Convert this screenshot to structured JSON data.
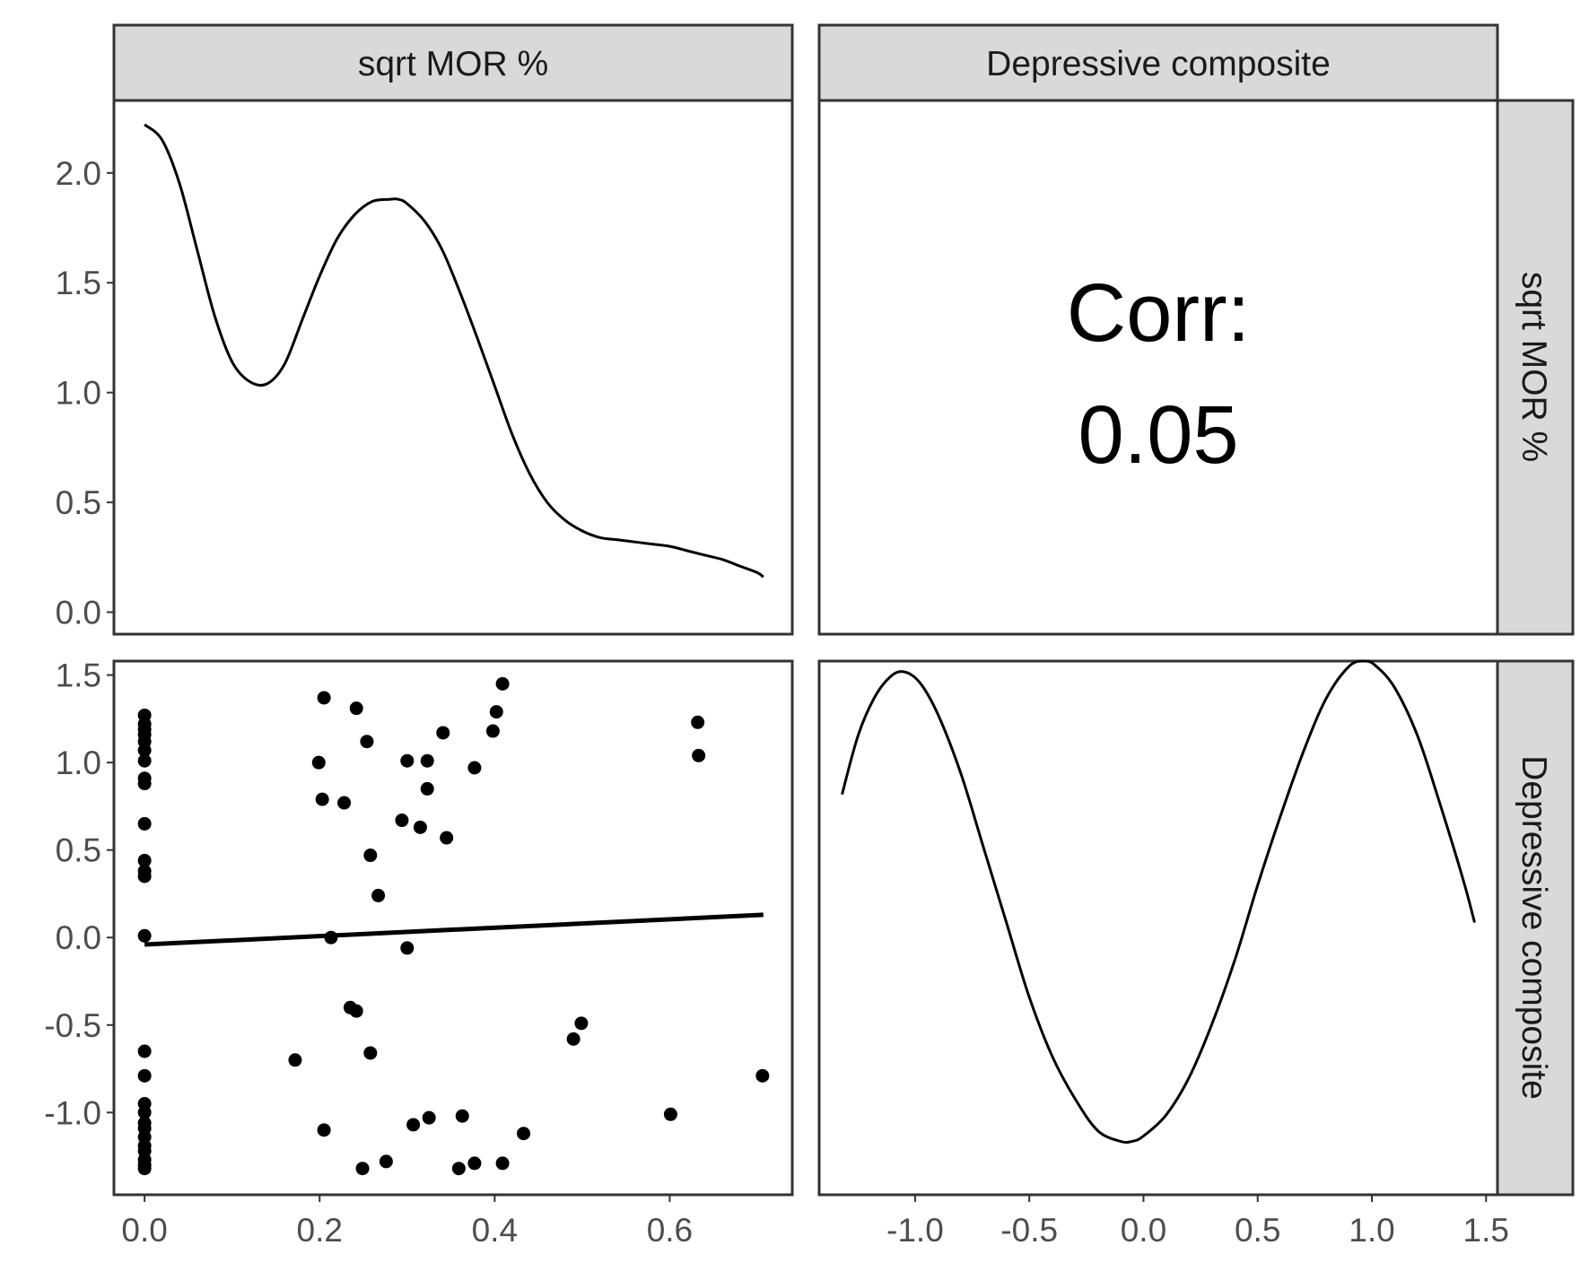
{
  "strips": {
    "top": [
      "sqrt MOR %",
      "Depressive composite"
    ],
    "right": [
      "sqrt MOR %",
      "Depressive composite"
    ]
  },
  "correlation": {
    "label": "Corr:",
    "value": "0.05"
  },
  "chart_data": [
    {
      "panel": "top-left",
      "type": "line",
      "description_variable": "sqrt MOR %",
      "xlim": [
        -0.035,
        0.74
      ],
      "ylim": [
        -0.1,
        2.33
      ],
      "yticks": [
        0.0,
        0.5,
        1.0,
        1.5,
        2.0
      ],
      "ytick_labels": [
        "0.0",
        "0.5",
        "1.0",
        "1.5",
        "2.0"
      ],
      "x": [
        0.0,
        0.02,
        0.04,
        0.06,
        0.08,
        0.1,
        0.12,
        0.14,
        0.16,
        0.18,
        0.2,
        0.22,
        0.24,
        0.26,
        0.28,
        0.29,
        0.3,
        0.32,
        0.34,
        0.36,
        0.38,
        0.4,
        0.42,
        0.44,
        0.46,
        0.48,
        0.5,
        0.52,
        0.54,
        0.56,
        0.58,
        0.6,
        0.62,
        0.64,
        0.66,
        0.68,
        0.7,
        0.707
      ],
      "y": [
        2.22,
        2.15,
        1.95,
        1.65,
        1.35,
        1.14,
        1.05,
        1.04,
        1.13,
        1.33,
        1.53,
        1.7,
        1.81,
        1.87,
        1.88,
        1.88,
        1.86,
        1.78,
        1.65,
        1.46,
        1.25,
        1.03,
        0.81,
        0.63,
        0.5,
        0.42,
        0.37,
        0.34,
        0.33,
        0.32,
        0.31,
        0.3,
        0.28,
        0.26,
        0.24,
        0.21,
        0.18,
        0.16
      ]
    },
    {
      "panel": "bottom-left",
      "type": "scatter",
      "xlim": [
        -0.035,
        0.74
      ],
      "ylim": [
        -1.47,
        1.58
      ],
      "xticks": [
        0.0,
        0.2,
        0.4,
        0.6
      ],
      "xtick_labels": [
        "0.0",
        "0.2",
        "0.4",
        "0.6"
      ],
      "yticks": [
        -1.0,
        -0.5,
        0.0,
        0.5,
        1.0,
        1.5
      ],
      "ytick_labels": [
        "-1.0",
        "-0.5",
        "0.0",
        "0.5",
        "1.0",
        "1.5"
      ],
      "points": [
        [
          0.0,
          1.27
        ],
        [
          0.0,
          1.22
        ],
        [
          0.0,
          1.19
        ],
        [
          0.0,
          1.16
        ],
        [
          0.0,
          1.12
        ],
        [
          0.0,
          1.07
        ],
        [
          0.0,
          1.01
        ],
        [
          0.0,
          0.91
        ],
        [
          0.0,
          0.88
        ],
        [
          0.0,
          0.65
        ],
        [
          0.0,
          0.44
        ],
        [
          0.0,
          0.38
        ],
        [
          0.0,
          0.35
        ],
        [
          0.0,
          0.01
        ],
        [
          0.0,
          -0.65
        ],
        [
          0.0,
          -0.79
        ],
        [
          0.0,
          -0.95
        ],
        [
          0.0,
          -1.0
        ],
        [
          0.0,
          -1.06
        ],
        [
          0.0,
          -1.09
        ],
        [
          0.0,
          -1.14
        ],
        [
          0.0,
          -1.19
        ],
        [
          0.0,
          -1.22
        ],
        [
          0.0,
          -1.27
        ],
        [
          0.0,
          -1.3
        ],
        [
          0.0,
          -1.32
        ],
        [
          0.172,
          -0.7
        ],
        [
          0.199,
          1.0
        ],
        [
          0.203,
          0.79
        ],
        [
          0.205,
          1.37
        ],
        [
          0.205,
          -1.1
        ],
        [
          0.213,
          0.0
        ],
        [
          0.228,
          0.77
        ],
        [
          0.235,
          -0.4
        ],
        [
          0.242,
          1.31
        ],
        [
          0.242,
          -0.42
        ],
        [
          0.249,
          -1.32
        ],
        [
          0.254,
          1.12
        ],
        [
          0.258,
          0.47
        ],
        [
          0.258,
          -0.66
        ],
        [
          0.267,
          0.24
        ],
        [
          0.276,
          -1.28
        ],
        [
          0.294,
          0.67
        ],
        [
          0.3,
          1.01
        ],
        [
          0.3,
          -0.06
        ],
        [
          0.307,
          -1.07
        ],
        [
          0.315,
          0.63
        ],
        [
          0.323,
          1.01
        ],
        [
          0.323,
          0.85
        ],
        [
          0.325,
          -1.03
        ],
        [
          0.341,
          1.17
        ],
        [
          0.345,
          0.57
        ],
        [
          0.359,
          -1.32
        ],
        [
          0.363,
          -1.02
        ],
        [
          0.377,
          0.97
        ],
        [
          0.377,
          -1.29
        ],
        [
          0.398,
          1.18
        ],
        [
          0.402,
          1.29
        ],
        [
          0.409,
          1.45
        ],
        [
          0.409,
          -1.29
        ],
        [
          0.433,
          -1.12
        ],
        [
          0.49,
          -0.58
        ],
        [
          0.499,
          -0.49
        ],
        [
          0.601,
          -1.01
        ],
        [
          0.632,
          1.23
        ],
        [
          0.633,
          1.04
        ],
        [
          0.706,
          -0.79
        ]
      ],
      "fit_line": {
        "x": [
          0.0,
          0.707
        ],
        "y": [
          -0.04,
          0.13
        ]
      }
    },
    {
      "panel": "bottom-right",
      "type": "line",
      "xlim": [
        -1.42,
        1.55
      ],
      "ylim": [
        -0.0,
        1.0
      ],
      "xticks": [
        -1.0,
        -0.5,
        0.0,
        0.5,
        1.0,
        1.5
      ],
      "xtick_labels": [
        "-1.0",
        "-0.5",
        "0.0",
        "0.5",
        "1.0",
        "1.5"
      ],
      "x": [
        -1.32,
        -1.25,
        -1.18,
        -1.11,
        -1.05,
        -0.98,
        -0.9,
        -0.8,
        -0.7,
        -0.6,
        -0.5,
        -0.4,
        -0.3,
        -0.2,
        -0.1,
        -0.05,
        0.0,
        0.1,
        0.2,
        0.3,
        0.4,
        0.5,
        0.6,
        0.7,
        0.8,
        0.9,
        0.97,
        1.02,
        1.1,
        1.2,
        1.3,
        1.4,
        1.45
      ],
      "y": [
        0.75,
        0.86,
        0.93,
        0.97,
        0.98,
        0.96,
        0.9,
        0.79,
        0.65,
        0.51,
        0.37,
        0.26,
        0.18,
        0.12,
        0.1,
        0.1,
        0.11,
        0.15,
        0.22,
        0.32,
        0.44,
        0.58,
        0.71,
        0.83,
        0.93,
        0.99,
        1.0,
        0.99,
        0.95,
        0.86,
        0.73,
        0.59,
        0.51
      ]
    }
  ]
}
